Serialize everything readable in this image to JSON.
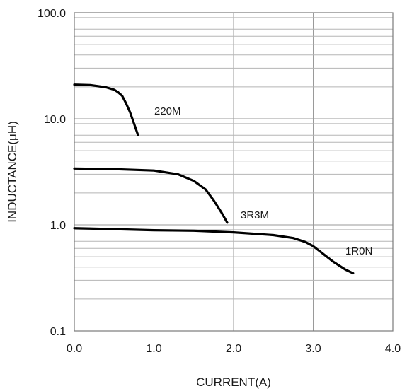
{
  "chart_data": {
    "type": "line",
    "xlabel": "CURRENT(A)",
    "ylabel": "INDUCTANCE(μH)",
    "xlim": [
      0,
      4
    ],
    "ylim": [
      0.1,
      100
    ],
    "yscale": "log",
    "grid": true,
    "x_tick_labels": [
      "0.0",
      "1.0",
      "2.0",
      "3.0",
      "4.0"
    ],
    "y_tick_labels": [
      "0.1",
      "1.0",
      "10.0",
      "100.0"
    ],
    "series": [
      {
        "name": "220M",
        "points": [
          [
            0.0,
            21.0
          ],
          [
            0.2,
            20.8
          ],
          [
            0.4,
            19.8
          ],
          [
            0.5,
            18.8
          ],
          [
            0.55,
            17.8
          ],
          [
            0.6,
            16.5
          ],
          [
            0.65,
            14.0
          ],
          [
            0.7,
            11.5
          ],
          [
            0.75,
            9.0
          ],
          [
            0.8,
            7.0
          ]
        ]
      },
      {
        "name": "3R3M",
        "points": [
          [
            0.0,
            3.4
          ],
          [
            0.5,
            3.35
          ],
          [
            1.0,
            3.25
          ],
          [
            1.3,
            3.0
          ],
          [
            1.5,
            2.6
          ],
          [
            1.65,
            2.15
          ],
          [
            1.75,
            1.7
          ],
          [
            1.85,
            1.3
          ],
          [
            1.92,
            1.05
          ]
        ]
      },
      {
        "name": "1R0N",
        "points": [
          [
            0.0,
            0.93
          ],
          [
            0.5,
            0.91
          ],
          [
            1.0,
            0.89
          ],
          [
            1.5,
            0.88
          ],
          [
            2.0,
            0.85
          ],
          [
            2.5,
            0.8
          ],
          [
            2.75,
            0.75
          ],
          [
            2.9,
            0.69
          ],
          [
            3.0,
            0.63
          ],
          [
            3.1,
            0.55
          ],
          [
            3.25,
            0.45
          ],
          [
            3.4,
            0.38
          ],
          [
            3.5,
            0.35
          ]
        ]
      }
    ]
  }
}
